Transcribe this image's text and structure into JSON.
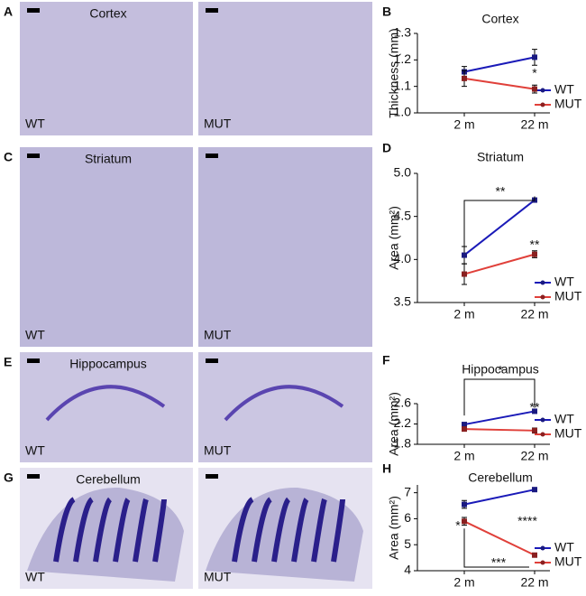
{
  "panels": [
    {
      "letter": "A",
      "title": "Cortex",
      "left": "WT",
      "right": "MUT"
    },
    {
      "letter": "C",
      "title": "Striatum",
      "left": "WT",
      "right": "MUT"
    },
    {
      "letter": "E",
      "title": "Hippocampus",
      "left": "WT",
      "right": "MUT"
    },
    {
      "letter": "G",
      "title": "Cerebellum",
      "left": "WT",
      "right": "MUT"
    }
  ],
  "chart_data": [
    {
      "type": "line",
      "letter": "B",
      "title": "Cortex",
      "ylabel": "Thickness (mm)",
      "categories": [
        "2 m",
        "22 m"
      ],
      "ylim": [
        1.0,
        1.3
      ],
      "yticks": [
        {
          "value": 1.0,
          "label": "1.0"
        },
        1.1,
        1.2,
        1.3
      ],
      "series": [
        {
          "name": "WT",
          "color": "#1a1ab8",
          "values": [
            1.155,
            1.21
          ],
          "errors": [
            0.02,
            0.03
          ]
        },
        {
          "name": "MUT",
          "color": "#e0403a",
          "values": [
            1.13,
            1.09
          ],
          "errors": [
            0.03,
            0.015
          ]
        }
      ],
      "annotations": [
        "*"
      ]
    },
    {
      "type": "line",
      "letter": "D",
      "title": "Striatum",
      "ylabel": "Area (mm²)",
      "categories": [
        "2 m",
        "22 m"
      ],
      "ylim": [
        3.5,
        5.0
      ],
      "yticks": [
        3.5,
        {
          "value": 4.0,
          "label": "4.0"
        },
        4.5,
        {
          "value": 5.0,
          "label": "5.0"
        }
      ],
      "series": [
        {
          "name": "WT",
          "color": "#1a1ab8",
          "values": [
            4.05,
            4.69
          ],
          "errors": [
            0.1,
            0.02
          ]
        },
        {
          "name": "MUT",
          "color": "#e0403a",
          "values": [
            3.83,
            4.06
          ],
          "errors": [
            0.12,
            0.04
          ]
        }
      ],
      "annotations": [
        "**",
        "**"
      ]
    },
    {
      "type": "line",
      "letter": "F",
      "title": "Hippocampus",
      "ylabel": "Area (mm²)",
      "categories": [
        "2 m",
        "22 m"
      ],
      "ylim": [
        1.8,
        2.6
      ],
      "yticks": [
        1.8,
        2.2,
        2.6
      ],
      "series": [
        {
          "name": "WT",
          "color": "#1a1ab8",
          "values": [
            2.19,
            2.45
          ],
          "errors": [
            0.02,
            0.03
          ]
        },
        {
          "name": "MUT",
          "color": "#e0403a",
          "values": [
            2.1,
            2.07
          ],
          "errors": [
            0.03,
            0.05
          ]
        }
      ],
      "annotations": [
        "*",
        "**"
      ]
    },
    {
      "type": "line",
      "letter": "H",
      "title": "Cerebellum",
      "ylabel": "Area (mm²)",
      "categories": [
        "2 m",
        "22 m"
      ],
      "ylim": [
        4,
        7.3
      ],
      "yticks": [
        4,
        5,
        6,
        7
      ],
      "series": [
        {
          "name": "WT",
          "color": "#1a1ab8",
          "values": [
            6.55,
            7.12
          ],
          "errors": [
            0.15,
            0.03
          ]
        },
        {
          "name": "MUT",
          "color": "#e0403a",
          "values": [
            5.9,
            4.6
          ],
          "errors": [
            0.15,
            0.05
          ]
        }
      ],
      "annotations": [
        "*",
        "****",
        "***"
      ]
    }
  ]
}
